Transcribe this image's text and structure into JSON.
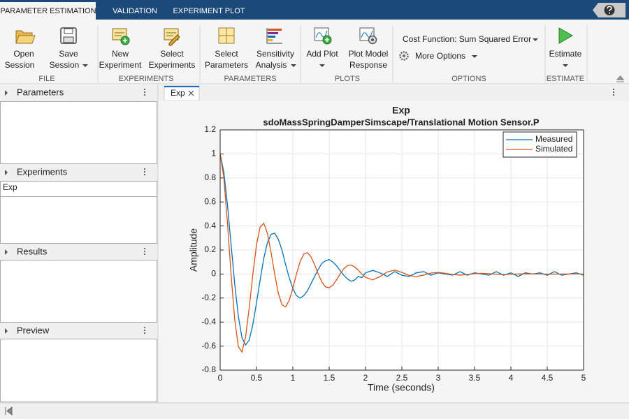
{
  "tabs": [
    "PARAMETER ESTIMATION",
    "VALIDATION",
    "EXPERIMENT PLOT"
  ],
  "toolstrip": {
    "groups": [
      {
        "label": "FILE",
        "buttons": [
          [
            "Open",
            "Session"
          ],
          [
            "Save",
            "Session"
          ]
        ]
      },
      {
        "label": "EXPERIMENTS",
        "buttons": [
          [
            "New",
            "Experiment"
          ],
          [
            "Select",
            "Experiments"
          ]
        ]
      },
      {
        "label": "PARAMETERS",
        "buttons": [
          [
            "Select",
            "Parameters"
          ],
          [
            "Sensitivity",
            "Analysis"
          ]
        ]
      },
      {
        "label": "PLOTS",
        "buttons": [
          [
            "Add Plot"
          ],
          [
            "Plot Model",
            "Response"
          ]
        ]
      },
      {
        "label": "OPTIONS",
        "items": [
          "Cost Function: Sum Squared Error",
          "More Options"
        ]
      },
      {
        "label": "ESTIMATE",
        "buttons": [
          [
            "Estimate"
          ]
        ]
      }
    ]
  },
  "left_panel": {
    "sections": [
      {
        "title": "Parameters"
      },
      {
        "title": "Experiments",
        "items": [
          "Exp"
        ]
      },
      {
        "title": "Results"
      },
      {
        "title": "Preview"
      }
    ]
  },
  "document_tab": "Exp",
  "chart_data": {
    "type": "line",
    "title": "Exp",
    "subtitle": "sdoMassSpringDamperSimscape/Translational Motion Sensor.P",
    "xlabel": "Time (seconds)",
    "ylabel": "Amplitude",
    "x": [
      0,
      0.05,
      0.1,
      0.15,
      0.2,
      0.25,
      0.3,
      0.35,
      0.4,
      0.45,
      0.5,
      0.55,
      0.6,
      0.65,
      0.7,
      0.75,
      0.8,
      0.85,
      0.9,
      0.95,
      1,
      1.05,
      1.1,
      1.15,
      1.2,
      1.25,
      1.3,
      1.35,
      1.4,
      1.45,
      1.5,
      1.55,
      1.6,
      1.65,
      1.7,
      1.75,
      1.8,
      1.85,
      1.9,
      1.95,
      2,
      2.1,
      2.2,
      2.3,
      2.4,
      2.5,
      2.6,
      2.7,
      2.8,
      2.9,
      3,
      3.1,
      3.2,
      3.3,
      3.4,
      3.5,
      3.6,
      3.7,
      3.8,
      3.9,
      4,
      4.1,
      4.2,
      4.3,
      4.4,
      4.5,
      4.6,
      4.7,
      4.8,
      4.9,
      5
    ],
    "series": [
      {
        "name": "Measured",
        "color": "#0072bd",
        "values": [
          1,
          0.85,
          0.58,
          0.25,
          -0.08,
          -0.35,
          -0.53,
          -0.59,
          -0.55,
          -0.42,
          -0.24,
          -0.05,
          0.13,
          0.26,
          0.33,
          0.34,
          0.29,
          0.2,
          0.08,
          -0.03,
          -0.12,
          -0.18,
          -0.2,
          -0.18,
          -0.14,
          -0.08,
          -0.02,
          0.04,
          0.09,
          0.11,
          0.12,
          0.1,
          0.07,
          0.03,
          -0.01,
          -0.04,
          -0.06,
          -0.05,
          -0.02,
          -0.03,
          0.01,
          0.03,
          0.01,
          -0.02,
          0.02,
          -0.01,
          -0.02,
          0.01,
          0.02,
          -0.01,
          0.01,
          0,
          -0.01,
          0.02,
          -0.01,
          0.01,
          0,
          -0.01,
          0.02,
          -0.01,
          0.01,
          -0.02,
          0.01,
          0,
          0.01,
          -0.01,
          0.02,
          -0.01,
          0,
          0.01,
          -0.01
        ]
      },
      {
        "name": "Simulated",
        "color": "#d95319",
        "values": [
          1,
          0.806,
          0.433,
          0,
          -0.375,
          -0.604,
          -0.649,
          -0.523,
          -0.281,
          0,
          0.243,
          0.392,
          0.422,
          0.34,
          0.182,
          0,
          -0.158,
          -0.255,
          -0.274,
          -0.22,
          -0.118,
          0,
          0.103,
          0.165,
          0.178,
          0.143,
          0.077,
          0,
          -0.067,
          -0.107,
          -0.115,
          -0.093,
          -0.05,
          0,
          0.043,
          0.07,
          0.075,
          0.06,
          0.032,
          0,
          -0.028,
          -0.049,
          -0.021,
          0.018,
          0.032,
          0.014,
          -0.012,
          -0.021,
          -0.009,
          0.008,
          0.013,
          0.006,
          -0.005,
          -0.009,
          -0.004,
          0.003,
          0.006,
          0.003,
          -0.002,
          -0.004,
          -0.002,
          0.001,
          0.002,
          0.001,
          0,
          -0.001,
          -0.001,
          0,
          0,
          0,
          0
        ]
      }
    ],
    "xlim": [
      0,
      5
    ],
    "xticks": [
      0,
      0.5,
      1,
      1.5,
      2,
      2.5,
      3,
      3.5,
      4,
      4.5,
      5
    ],
    "ylim": [
      -0.8,
      1.2
    ],
    "yticks": [
      -0.8,
      -0.6,
      -0.4,
      -0.2,
      0,
      0.2,
      0.4,
      0.6,
      0.8,
      1,
      1.2
    ],
    "grid": true,
    "legend": "upper right"
  }
}
